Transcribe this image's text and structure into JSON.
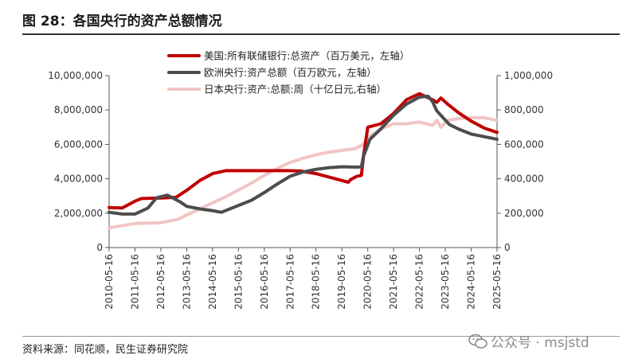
{
  "title": "图 28：各国央行的资产总额情况",
  "source": "资料来源：同花顺，民生证券研究院",
  "watermark": {
    "icon": "wechat-icon",
    "text": "公众号 · msjstd"
  },
  "chart_data": {
    "type": "line",
    "title": "",
    "xlabel": "",
    "ylabel": "",
    "grid": false,
    "legend_position": "top-center",
    "x_ticks": [
      "2010-05-16",
      "2011-05-16",
      "2012-05-16",
      "2013-05-16",
      "2014-05-16",
      "2015-05-16",
      "2016-05-16",
      "2017-05-16",
      "2018-05-16",
      "2019-05-16",
      "2020-05-16",
      "2021-05-16",
      "2022-05-16",
      "2023-05-16",
      "2024-05-16",
      "2025-05-16"
    ],
    "x_range": [
      "2010-05-16",
      "2025-05-16"
    ],
    "y_left": {
      "range": [
        0,
        10000000
      ],
      "ticks": [
        "0",
        "2,000,000",
        "4,000,000",
        "6,000,000",
        "8,000,000",
        "10,000,000"
      ]
    },
    "y_right": {
      "range": [
        0,
        1000000
      ],
      "ticks": [
        "0",
        "200,000",
        "400,000",
        "600,000",
        "800,000",
        "1,000,000"
      ]
    },
    "series": [
      {
        "name": "美国:所有联储银行:总资产（百万美元，左轴）",
        "axis": "left",
        "color": "#c00000",
        "points": [
          [
            "2010-05-16",
            2330000
          ],
          [
            "2010-11-16",
            2300000
          ],
          [
            "2011-05-16",
            2700000
          ],
          [
            "2011-08-16",
            2850000
          ],
          [
            "2012-05-16",
            2880000
          ],
          [
            "2012-12-16",
            2920000
          ],
          [
            "2013-05-16",
            3330000
          ],
          [
            "2013-11-16",
            3900000
          ],
          [
            "2014-05-16",
            4300000
          ],
          [
            "2014-11-16",
            4470000
          ],
          [
            "2015-05-16",
            4470000
          ],
          [
            "2016-05-16",
            4470000
          ],
          [
            "2017-05-16",
            4470000
          ],
          [
            "2017-10-16",
            4450000
          ],
          [
            "2018-05-16",
            4300000
          ],
          [
            "2018-11-16",
            4100000
          ],
          [
            "2019-08-16",
            3800000
          ],
          [
            "2019-09-16",
            3950000
          ],
          [
            "2019-12-16",
            4150000
          ],
          [
            "2020-02-16",
            4200000
          ],
          [
            "2020-03-16",
            5300000
          ],
          [
            "2020-05-16",
            7000000
          ],
          [
            "2020-11-16",
            7200000
          ],
          [
            "2021-05-16",
            7800000
          ],
          [
            "2021-11-16",
            8600000
          ],
          [
            "2022-05-16",
            8950000
          ],
          [
            "2022-11-16",
            8600000
          ],
          [
            "2023-01-16",
            8450000
          ],
          [
            "2023-03-16",
            8700000
          ],
          [
            "2023-06-16",
            8350000
          ],
          [
            "2023-11-16",
            7850000
          ],
          [
            "2024-05-16",
            7350000
          ],
          [
            "2024-11-16",
            6950000
          ],
          [
            "2025-05-16",
            6700000
          ]
        ]
      },
      {
        "name": "欧洲央行:资产总额（百万欧元，左轴）",
        "axis": "left",
        "color": "#4d4d4d",
        "points": [
          [
            "2010-05-16",
            2050000
          ],
          [
            "2010-11-16",
            1950000
          ],
          [
            "2011-05-16",
            1950000
          ],
          [
            "2011-11-16",
            2300000
          ],
          [
            "2012-03-16",
            2900000
          ],
          [
            "2012-08-16",
            3050000
          ],
          [
            "2013-02-16",
            2650000
          ],
          [
            "2013-05-16",
            2400000
          ],
          [
            "2013-11-16",
            2250000
          ],
          [
            "2014-05-16",
            2150000
          ],
          [
            "2014-09-16",
            2050000
          ],
          [
            "2015-05-16",
            2450000
          ],
          [
            "2015-11-16",
            2750000
          ],
          [
            "2016-05-16",
            3200000
          ],
          [
            "2016-11-16",
            3700000
          ],
          [
            "2017-05-16",
            4150000
          ],
          [
            "2017-11-16",
            4400000
          ],
          [
            "2018-05-16",
            4550000
          ],
          [
            "2018-11-16",
            4650000
          ],
          [
            "2019-05-16",
            4700000
          ],
          [
            "2019-11-16",
            4680000
          ],
          [
            "2020-02-16",
            4690000
          ],
          [
            "2020-03-16",
            5300000
          ],
          [
            "2020-06-16",
            6300000
          ],
          [
            "2020-11-16",
            6900000
          ],
          [
            "2021-05-16",
            7700000
          ],
          [
            "2021-11-16",
            8350000
          ],
          [
            "2022-05-16",
            8750000
          ],
          [
            "2022-09-16",
            8800000
          ],
          [
            "2022-11-16",
            8500000
          ],
          [
            "2023-01-16",
            7950000
          ],
          [
            "2023-07-16",
            7150000
          ],
          [
            "2023-11-16",
            6900000
          ],
          [
            "2024-05-16",
            6600000
          ],
          [
            "2024-11-16",
            6450000
          ],
          [
            "2025-05-16",
            6300000
          ]
        ]
      },
      {
        "name": "日本央行:资产:总额:周（十亿日元,右轴）",
        "axis": "right",
        "color": "#f2c4c4",
        "points": [
          [
            "2010-05-16",
            115000
          ],
          [
            "2011-03-16",
            135000
          ],
          [
            "2011-05-16",
            140000
          ],
          [
            "2012-05-16",
            145000
          ],
          [
            "2013-01-16",
            165000
          ],
          [
            "2013-05-16",
            190000
          ],
          [
            "2013-11-16",
            225000
          ],
          [
            "2014-05-16",
            260000
          ],
          [
            "2014-11-16",
            295000
          ],
          [
            "2015-05-16",
            335000
          ],
          [
            "2015-11-16",
            375000
          ],
          [
            "2016-05-16",
            420000
          ],
          [
            "2016-11-16",
            460000
          ],
          [
            "2017-05-16",
            495000
          ],
          [
            "2017-11-16",
            520000
          ],
          [
            "2018-05-16",
            540000
          ],
          [
            "2018-11-16",
            555000
          ],
          [
            "2019-05-16",
            565000
          ],
          [
            "2019-11-16",
            575000
          ],
          [
            "2020-03-16",
            600000
          ],
          [
            "2020-05-16",
            640000
          ],
          [
            "2020-11-16",
            690000
          ],
          [
            "2021-05-16",
            720000
          ],
          [
            "2021-11-16",
            720000
          ],
          [
            "2022-05-16",
            730000
          ],
          [
            "2022-11-16",
            710000
          ],
          [
            "2023-01-16",
            740000
          ],
          [
            "2023-03-16",
            700000
          ],
          [
            "2023-06-16",
            740000
          ],
          [
            "2023-11-16",
            750000
          ],
          [
            "2024-05-16",
            755000
          ],
          [
            "2024-11-16",
            755000
          ],
          [
            "2025-05-16",
            740000
          ]
        ]
      }
    ]
  }
}
